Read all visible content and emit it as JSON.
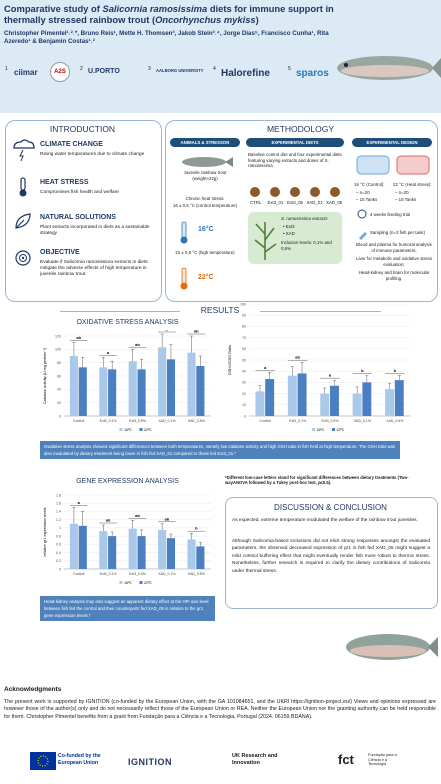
{
  "header": {
    "title": [
      {
        "text": "Comparative study of ",
        "italic": false
      },
      {
        "text": "Salicornia ramosissima",
        "italic": true
      },
      {
        "text": " diets for immune support in thermally stressed rainbow trout (",
        "italic": false
      },
      {
        "text": "Oncorhynchus mykiss",
        "italic": true
      },
      {
        "text": ")",
        "italic": false
      }
    ],
    "authors": "Christopher Pimentel¹˒²˒*, Bruno Reis¹, Mette H. Thomsen³, Jakob Stein³˒⁴, Jorge Dias⁵, Francisco Cunha¹, Rita Azeredo¹ & Benjamin Costas¹˒²",
    "logos": [
      {
        "number": "1",
        "name": "ciimar"
      },
      {
        "name": "A2S"
      },
      {
        "number": "2",
        "name": "U.PORTO"
      },
      {
        "number": "3",
        "name": "AALBORG UNIVERSITY"
      },
      {
        "number": "4",
        "name": "Halorefine"
      },
      {
        "number": "5",
        "name": "sparos"
      }
    ]
  },
  "introduction": {
    "title": "INTRODUCTION",
    "items": [
      {
        "title": "CLIMATE CHANGE",
        "text": "Rising water temperatures due to climate change"
      },
      {
        "title": "HEAT STRESS",
        "text": "Compromises fish health and welfare"
      },
      {
        "title": "NATURAL SOLUTIONS",
        "text": "Plant extracts incorporated in diets as a sustainable strategy"
      },
      {
        "title": "OBJECTIVE",
        "text": "Evaluate if Salicornia ramosissima extracts in diets mitigate the adverse effects of high temperature in juvenile rainbow trout"
      }
    ]
  },
  "methodology": {
    "title": "METHODOLOGY",
    "animals": {
      "header": "ANIMALS & STRESSOR",
      "fish": "Juvenile rainbow trout (weight≈22g)",
      "stress": "Chronic heat stress:",
      "control_temp": "16 ± 0,5 °C (control temperature)",
      "control_badge": "16°C",
      "high_temp": "22 ± 0,5 °C (high temperature)",
      "high_badge": "22°C"
    },
    "diets": {
      "header": "EXPERIMENTAL DIETS",
      "text": "Baseline control diet and four experimental diets featuring varying extracts and doses of S. ramosissima",
      "labels": [
        "CTRL",
        "Ext3_01",
        "Ext3_05",
        "XAD_01",
        "XAD_05"
      ],
      "extracts_title": "S. ramosissima extracts",
      "extracts": [
        "• Ext3",
        "• XAD"
      ],
      "inclusion": "Inclusion levels: 0,1% and 0,5%"
    },
    "design": {
      "header": "EXPERIMENTAL DESIGN",
      "control": "16 °C (Control):",
      "control_items": [
        "– n=20",
        "– 15 Tanks"
      ],
      "heat": "22 °C (Heat stress):",
      "heat_items": [
        "– n=20",
        "– 15 Tanks"
      ],
      "trial": "4 weeks feeding trial",
      "sampling": "Sampling (n=3 fish per tank)",
      "samples": [
        "Blood and plasma for humoral analysis of immune parameters;",
        "Liver for metabolic and oxidative stress evaluation;",
        "Head-kidney and brain for molecular profiling."
      ]
    }
  },
  "results": {
    "title": "RESULTS",
    "oxidative_title": "OXIDATIVE STRESS ANALYSIS",
    "gene_title": "GENE EXPRESSION ANALYSIS",
    "oxidative_summary": "Oxidative stress analysis showed significant differences between both temperatures, namely low catalase activity and high GSH ratio in fish held at high temperature. The GSH ratio was also modulated by dietary treatment being lower in fish fed XAD_01 compared to those fed Ext3_01.*",
    "letters_note": "*Different low-case letters stand for significant differences between dietary treatments (Two-wayANOVA followed by a Tukey post-hoc test, p≤0.5).",
    "gene_summary": "Head-kidney analysis may also suggest an apparent dietary effect at the HPI axis level between fish fed the control and their counterparts fed XAD_05 in relation to the gr1 gene expression levels.*"
  },
  "charts": [
    {
      "type": "bar",
      "y_label": "Catalase activity (U mg protein⁻¹)",
      "categories": [
        "Control",
        "Ext3_0.1%",
        "Ext3_0.5%",
        "XAD_0.1%",
        "XAD_0.5%"
      ],
      "series": [
        {
          "name": "16ºC",
          "color": "#a9c8ea",
          "values": [
            90,
            73,
            82,
            103,
            95
          ],
          "errors": [
            20,
            15,
            18,
            20,
            25
          ]
        },
        {
          "name": "22ºC",
          "color": "#4a7fc1",
          "values": [
            73,
            70,
            70,
            85,
            75
          ],
          "errors": [
            15,
            12,
            15,
            22,
            15
          ]
        }
      ],
      "letters": [
        "ab",
        "a",
        "ab",
        "b",
        "ab"
      ],
      "ylim": [
        0,
        120
      ],
      "yticks": [
        0,
        20,
        40,
        60,
        80,
        100,
        120
      ],
      "grid": true
    },
    {
      "type": "bar",
      "y_label": "GSH/GSSG Ratio",
      "categories": [
        "Control",
        "Ext3_0.1%",
        "Ext3_0.5%",
        "XAD_0.1%",
        "XAD_0.5%"
      ],
      "series": [
        {
          "name": "16ºC",
          "color": "#a9c8ea",
          "values": [
            22,
            36,
            20,
            20,
            24
          ],
          "errors": [
            5,
            8,
            5,
            6,
            5
          ]
        },
        {
          "name": "22ºC",
          "color": "#4a7fc1",
          "values": [
            33,
            38,
            27,
            30,
            32
          ],
          "errors": [
            6,
            10,
            5,
            6,
            4
          ]
        }
      ],
      "letters": [
        "a",
        "ab",
        "a",
        "b",
        "b"
      ],
      "ylim": [
        0,
        100
      ],
      "yticks": [
        0,
        10,
        20,
        30,
        40,
        50,
        60,
        70,
        80,
        90,
        100
      ],
      "grid": true
    },
    {
      "type": "bar",
      "y_label": "relative gr1 expression levels",
      "categories": [
        "Control",
        "Ext3_0.1%",
        "Ext3_0.5%",
        "XAD_0.1%",
        "XAD_0.5%"
      ],
      "series": [
        {
          "name": "16ºC",
          "color": "#a9c8ea",
          "values": [
            1.1,
            0.92,
            0.98,
            0.95,
            0.72
          ],
          "errors": [
            0.4,
            0.15,
            0.2,
            0.15,
            0.15
          ]
        },
        {
          "name": "22ºC",
          "color": "#4a7fc1",
          "values": [
            1.05,
            0.8,
            0.8,
            0.75,
            0.55
          ],
          "errors": [
            0.35,
            0.1,
            0.15,
            0.1,
            0.1
          ]
        }
      ],
      "letters": [
        "a",
        "ab",
        "ab",
        "ab",
        "b"
      ],
      "ylim": [
        0,
        1.8
      ],
      "yticks": [
        0,
        0.2,
        0.4,
        0.6,
        0.8,
        1,
        1.2,
        1.4,
        1.6,
        1.8
      ],
      "grid": true
    }
  ],
  "discussion": {
    "title": "DISCUSSION & CONCLUSION",
    "paragraphs": [
      "As expected, extreme temperature modulated the welfare of the rainbow trout juveniles.",
      "Although Salicornia-based inclusions did not elicit strong responses amongst the evaluated parameters, the observed decreased expression of gr1 in fish fed XAD_05 might suggest a mild cortisol buffering effect that might eventually render fish more robust to thermic stress. Nonetheless, further research is required to clarify the dietary contributions of Salicornia under thermal stress."
    ]
  },
  "acknowledgments": {
    "title": "Acknowledgments",
    "text": "The present work is supported by IGNITION (co-funded by the European Union, with the GA 101084651, and the UKRI https://ignition-project.eu/) Views and opinions expressed are however those of the author(s) only and do not necessarily reflect those of the European Union or REA. Neither the European Union nor the granting authority can be held responsible for them. Christopher Pimentel benefits from a grant from Fundação para a Ciência e a Tecnologia, Portugal (2024. 06159.BDANA)."
  },
  "footer": {
    "logos": [
      "Co-funded by the European Union",
      "IGNITION",
      "UK Research and Innovation",
      "fct",
      "Fundação para a Ciência e a Tecnologia"
    ]
  }
}
